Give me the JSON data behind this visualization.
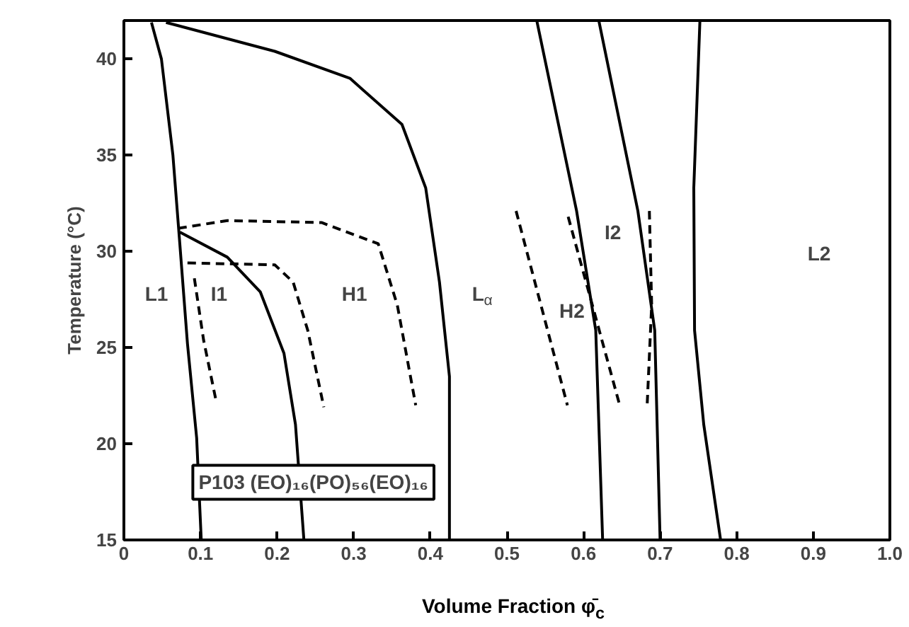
{
  "chart_data": {
    "type": "line",
    "xlabel": "Volume Fraction φ̄$_{c}$",
    "ylabel": "Temperature (°C)",
    "xlim": [
      0,
      1.0
    ],
    "ylim": [
      15,
      42
    ],
    "xticks": [
      0,
      0.1,
      0.2,
      0.3,
      0.4,
      0.5,
      0.6,
      0.7,
      0.8,
      0.9,
      {
        "value": 1.0,
        "label": "1.0"
      }
    ],
    "yticks": [
      15,
      20,
      25,
      30,
      35,
      40
    ],
    "grid": false,
    "series": [
      {
        "color": "#000000",
        "line_style": "solid",
        "x": [
          0.036,
          0.049,
          0.064,
          0.073,
          0.083,
          0.095,
          0.101
        ],
        "values": [
          41.9,
          40,
          35.0,
          30.4,
          25.2,
          20.3,
          15
        ]
      },
      {
        "color": "#000000",
        "line_style": "solid",
        "x": [
          0.055,
          0.197,
          0.295,
          0.363,
          0.394,
          0.412,
          0.425,
          0.425,
          0.425
        ],
        "values": [
          41.9,
          40.4,
          39.0,
          36.6,
          33.3,
          28.4,
          23.5,
          18.6,
          15
        ]
      },
      {
        "color": "#000000",
        "line_style": "solid",
        "x": [
          0.073,
          0.135,
          0.178,
          0.209,
          0.224,
          0.235
        ],
        "values": [
          31.0,
          29.7,
          27.9,
          24.7,
          21.0,
          15
        ]
      },
      {
        "color": "#000000",
        "line_style": "dashed",
        "x": [
          0.071,
          0.135,
          0.258,
          0.332,
          0.357,
          0.381
        ],
        "values": [
          31.2,
          31.6,
          31.5,
          30.4,
          27.2,
          22.0
        ]
      },
      {
        "color": "#000000",
        "line_style": "dashed",
        "x": [
          0.083,
          0.197,
          0.221,
          0.24,
          0.261
        ],
        "values": [
          29.4,
          29.3,
          28.4,
          25.9,
          21.9
        ]
      },
      {
        "color": "#000000",
        "line_style": "dashed",
        "x": [
          0.092,
          0.104,
          0.12
        ],
        "values": [
          28.6,
          25.4,
          22.3
        ]
      },
      {
        "color": "#000000",
        "line_style": "solid",
        "x": [
          0.539,
          0.591,
          0.616,
          0.625
        ],
        "values": [
          42,
          32.1,
          25.9,
          15
        ]
      },
      {
        "color": "#000000",
        "line_style": "solid",
        "x": [
          0.62,
          0.671,
          0.693,
          0.7
        ],
        "values": [
          42,
          32.1,
          25.9,
          15
        ]
      },
      {
        "color": "#000000",
        "line_style": "solid",
        "x": [
          0.752,
          0.744,
          0.745,
          0.757,
          0.779
        ],
        "values": [
          42,
          33.3,
          25.9,
          21.0,
          15
        ]
      },
      {
        "color": "#000000",
        "line_style": "dashed",
        "x": [
          0.512,
          0.579
        ],
        "values": [
          32.1,
          22.0
        ]
      },
      {
        "color": "#000000",
        "line_style": "dashed",
        "x": [
          0.58,
          0.648
        ],
        "values": [
          31.8,
          21.9
        ]
      },
      {
        "color": "#000000",
        "line_style": "dashed",
        "x": [
          0.686,
          0.689,
          0.683
        ],
        "values": [
          32.1,
          27.2,
          21.9
        ]
      }
    ],
    "annotations": [
      "L1",
      "I1",
      "H1",
      "L$_{α}$",
      "H2",
      "I2",
      "L2",
      "P103 (EO)₁₆(PO)₅₆(EO)₁₆"
    ]
  }
}
